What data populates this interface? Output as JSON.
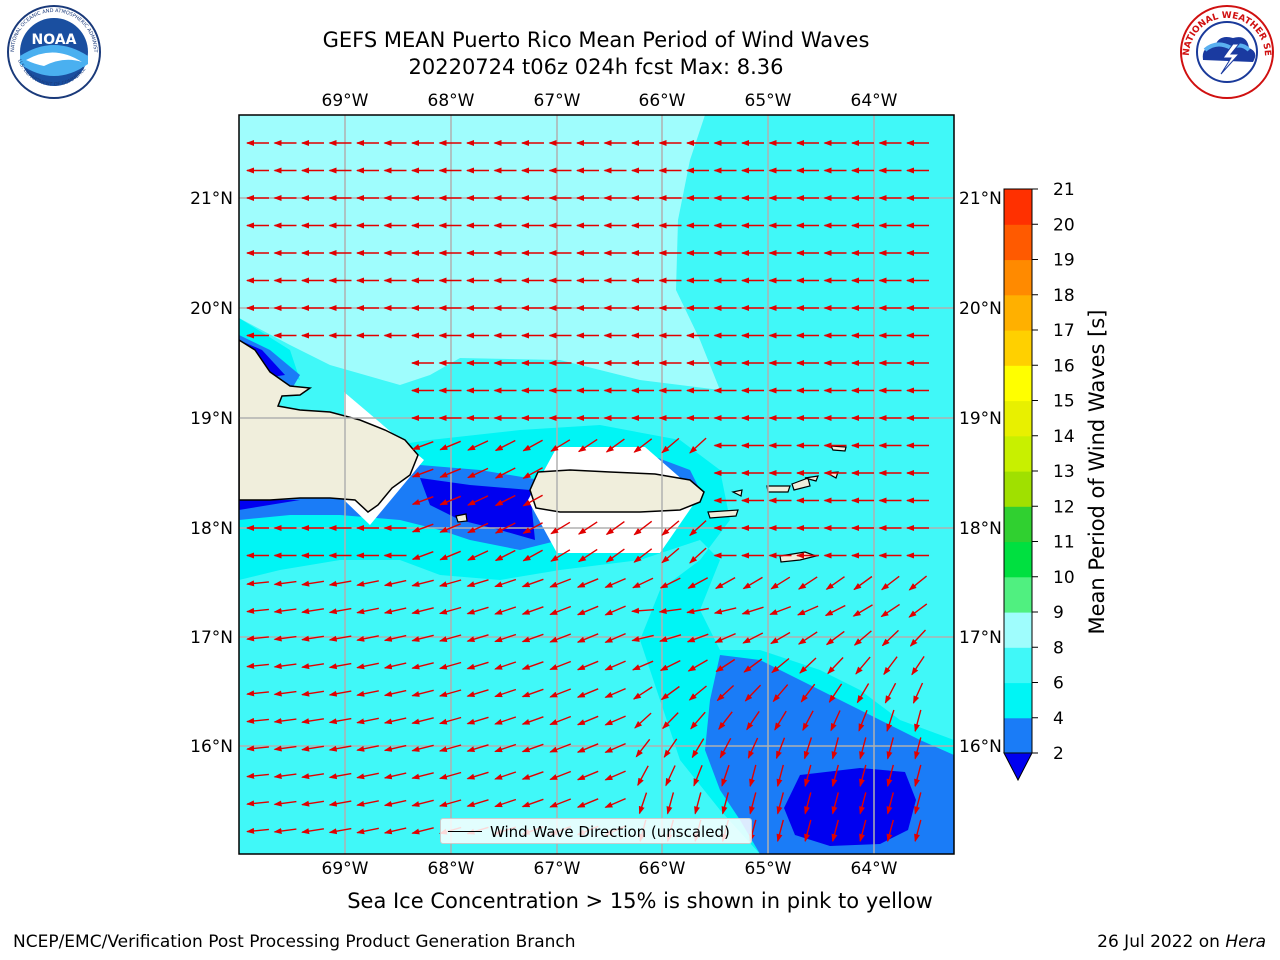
{
  "title": {
    "line1": "GEFS MEAN Puerto Rico Mean Period of Wind Waves",
    "line2": "20220724 t06z 024h fcst   Max: 8.36"
  },
  "logos": {
    "noaa_text": "NOAA",
    "noaa_ring_text": "NATIONAL OCEANIC AND ATMOSPHERIC ADMINISTRATION",
    "noaa_bottom_text": "U.S. DEPARTMENT OF COMMERCE",
    "nws_ring_text": "NATIONAL WEATHER SERVICE"
  },
  "map": {
    "lon_ticks": [
      "69°W",
      "68°W",
      "67°W",
      "66°W",
      "65°W",
      "64°W"
    ],
    "lat_ticks": [
      "21°N",
      "20°N",
      "19°N",
      "18°N",
      "17°N",
      "16°N"
    ],
    "legend_label": "Wind Wave Direction (unscaled)",
    "field_colors": {
      "light": "#9ffdfd",
      "mid": "#40f8f8",
      "cyan": "#00f5f5",
      "blue": "#1a7cf7",
      "dark": "#0000f0",
      "land": "#f0eedc",
      "arrow": "#e00000"
    }
  },
  "colorbar": {
    "label": "Mean Period of Wind Waves [s]",
    "ticks": [
      "21",
      "20",
      "19",
      "18",
      "17",
      "16",
      "15",
      "14",
      "13",
      "12",
      "11",
      "10",
      "9",
      "8",
      "6",
      "4",
      "2"
    ],
    "colors": [
      "#0000f0",
      "#1a7cf7",
      "#00f5f5",
      "#40f8f8",
      "#9ffdfd",
      "#50f080",
      "#00e040",
      "#30d030",
      "#a0e000",
      "#c8f000",
      "#e8f000",
      "#ffff00",
      "#ffd000",
      "#ffb000",
      "#ff8a00",
      "#ff5a00",
      "#ff3000",
      "#ff0000"
    ]
  },
  "footer": {
    "note": "Sea Ice Concentration > 15% is shown in pink to yellow",
    "credit_left": "NCEP/EMC/Verification Post Processing Product Generation Branch",
    "credit_date": "26 Jul 2022 on ",
    "credit_host": "Hera"
  }
}
